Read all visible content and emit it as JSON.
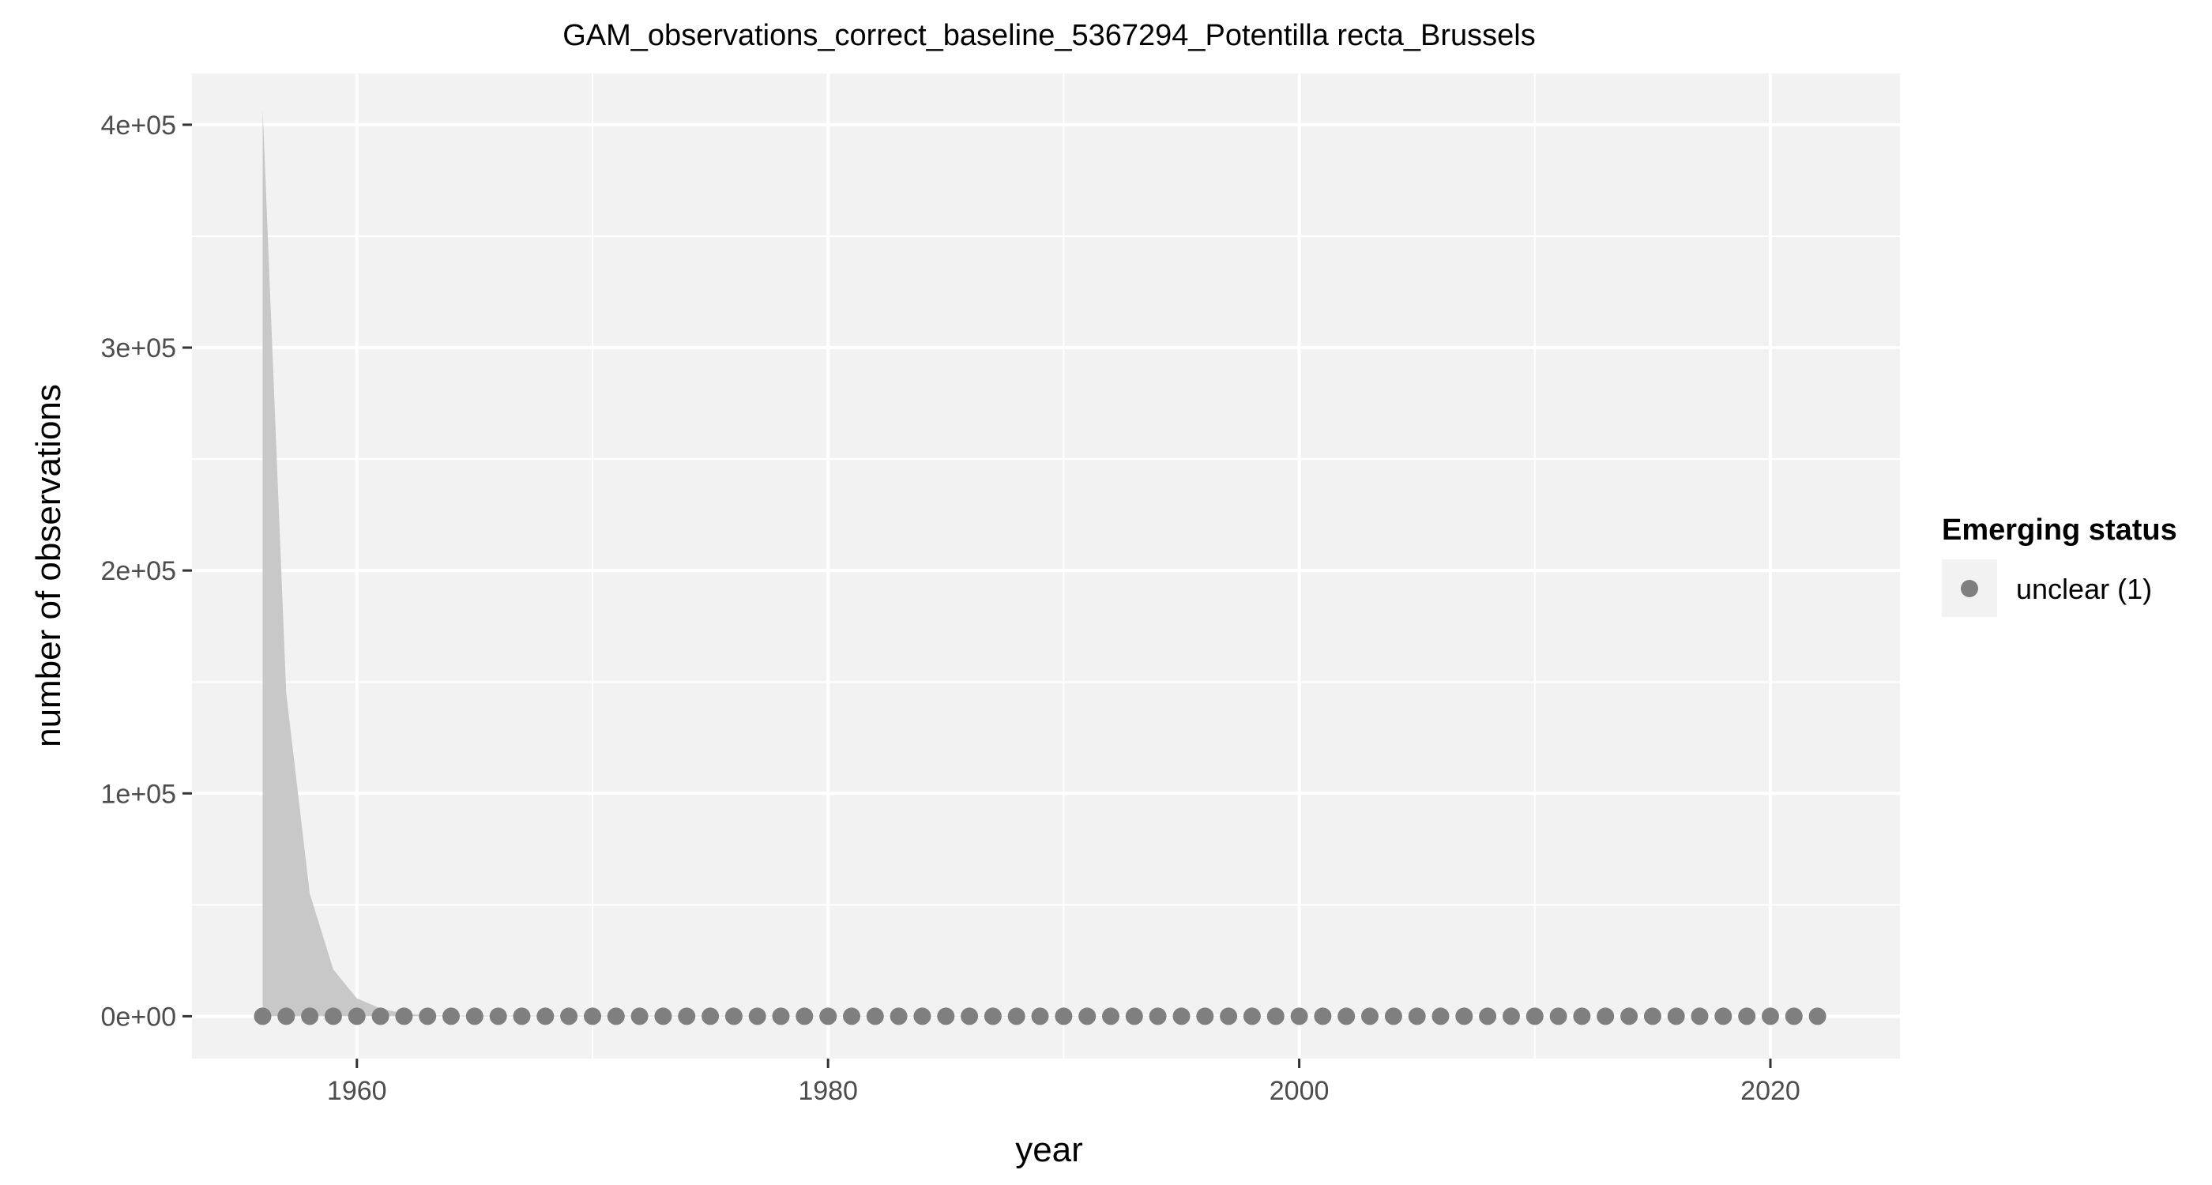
{
  "chart_data": {
    "type": "scatter",
    "title": "GAM_observations_correct_baseline_5367294_Potentilla recta_Brussels",
    "xlabel": "year",
    "ylabel": "number of observations",
    "xlim": [
      1953,
      2025.5
    ],
    "ylim": [
      -19000,
      423000
    ],
    "x_ticks": [
      1960,
      1980,
      2000,
      2020
    ],
    "x_tick_labels": [
      "1960",
      "1980",
      "2000",
      "2020"
    ],
    "y_ticks": [
      0,
      100000,
      200000,
      300000,
      400000
    ],
    "y_tick_labels": [
      "0e+00",
      "1e+05",
      "2e+05",
      "3e+05",
      "4e+05"
    ],
    "grid": true,
    "legend": {
      "title": "Emerging status",
      "placement": "right",
      "entries": [
        "unclear (1)"
      ]
    },
    "point_color": "#7f7f7f",
    "ribbon_color": "#c8c8c8",
    "panel_background": "#f2f2f2",
    "series": [
      {
        "name": "unclear (1)",
        "x_start": 1956,
        "x_end": 2022,
        "value": 0
      }
    ],
    "ribbon": {
      "x": [
        1956,
        1957,
        1958,
        1959,
        1960,
        1961,
        1962,
        1963,
        2022
      ],
      "upper": [
        407000,
        145000,
        55000,
        21000,
        8000,
        3500,
        1200,
        300,
        0
      ],
      "lower": [
        0,
        0,
        0,
        0,
        0,
        0,
        0,
        0,
        0
      ]
    }
  }
}
